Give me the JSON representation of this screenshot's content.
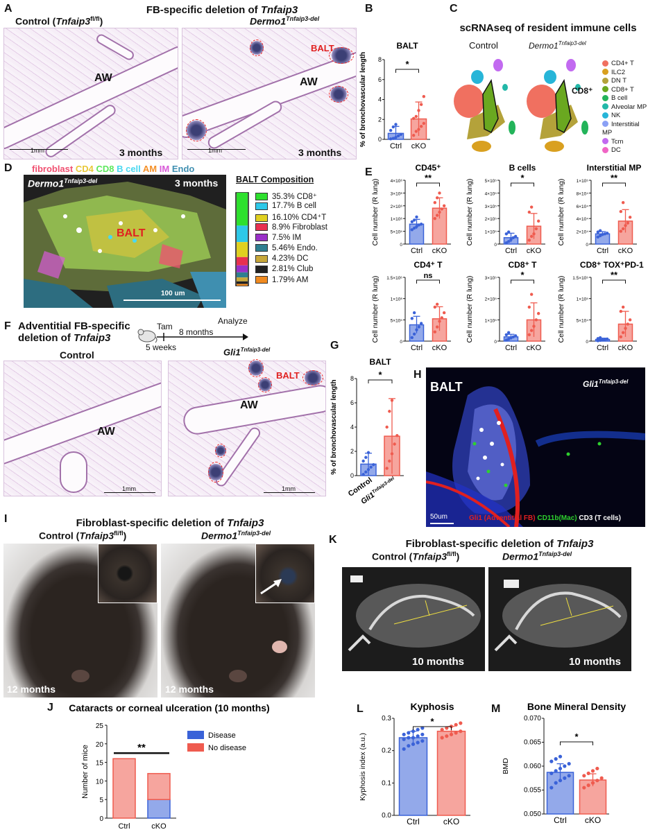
{
  "panels": {
    "A": "A",
    "B": "B",
    "C": "C",
    "D": "D",
    "E": "E",
    "F": "F",
    "G": "G",
    "H": "H",
    "I": "I",
    "J": "J",
    "K": "K",
    "L": "L",
    "M": "M"
  },
  "panelA": {
    "title_prefix": "FB-specific deletion of ",
    "title_gene": "Tnfaip3",
    "control_prefix": "Control (",
    "control_gene": "Tnfaip3",
    "control_sup": "fl/fl",
    "control_suffix": ")",
    "dermo_base": "Dermo1",
    "dermo_sup": "Tnfaip3-del",
    "aw": "AW",
    "balt": "BALT",
    "time": "3 months",
    "scale": "1mm"
  },
  "panelB": {
    "title": "BALT",
    "ylabel": "% of bronchovascular length",
    "sig": "*"
  },
  "panelC": {
    "title": "scRNAseq of resident immune cells",
    "control": "Control",
    "dermo_base": "Dermo1",
    "dermo_sup": "Tnfaip3-del",
    "cd8": "CD8⁺",
    "legend": [
      {
        "label": "CD4+ T",
        "color": "#f07060"
      },
      {
        "label": "ILC2",
        "color": "#d9a020"
      },
      {
        "label": "DN T",
        "color": "#b4a23a"
      },
      {
        "label": "CD8+ T",
        "color": "#6aa820"
      },
      {
        "label": "B cell",
        "color": "#23b45a"
      },
      {
        "label": "Alveolar MP",
        "color": "#22b8a8"
      },
      {
        "label": "NK",
        "color": "#27b5d8"
      },
      {
        "label": "Interstitial MP",
        "color": "#8aa0f5"
      },
      {
        "label": "Tcm",
        "color": "#c26af0"
      },
      {
        "label": "DC",
        "color": "#f065c5"
      }
    ]
  },
  "panelD": {
    "header": [
      {
        "text": "fibroblast",
        "color": "#f05070"
      },
      {
        "text": "CD4",
        "color": "#e8c838"
      },
      {
        "text": "CD8",
        "color": "#5ee85e"
      },
      {
        "text": "B cell",
        "color": "#4ad8f0"
      },
      {
        "text": "AM",
        "color": "#f49028"
      },
      {
        "text": "IM",
        "color": "#d85ad8"
      },
      {
        "text": "Endo",
        "color": "#3f8fb0"
      }
    ],
    "dermo_base": "Dermo1",
    "dermo_sup": "Tnfaip3-del",
    "time": "3 months",
    "balt": "BALT",
    "scale": "100 um",
    "comp_title": "BALT Composition",
    "composition": [
      {
        "label": "35.3% CD8⁺",
        "value": 35.3,
        "color": "#2ee02e"
      },
      {
        "label": "17.7% B cell",
        "value": 17.7,
        "color": "#2ec8e8"
      },
      {
        "label": "16.10% CD4⁺T",
        "value": 16.1,
        "color": "#e0d020"
      },
      {
        "label": "8.9% Fibroblast",
        "value": 8.9,
        "color": "#e83050"
      },
      {
        "label": "7.5% IM",
        "value": 7.5,
        "color": "#9a30c8"
      },
      {
        "label": "5.46% Endo.",
        "value": 5.46,
        "color": "#2f7f90"
      },
      {
        "label": "4.23% DC",
        "value": 4.23,
        "color": "#c8a83a"
      },
      {
        "label": "2.81% Club",
        "value": 2.81,
        "color": "#222222"
      },
      {
        "label": "1.79% AM",
        "value": 1.79,
        "color": "#f08a20"
      }
    ]
  },
  "panelE": {
    "ylabel": "Cell number (R lung)",
    "plots": [
      {
        "title": "CD45⁺",
        "sig": "**",
        "ticks": [
          "0",
          "5×10⁵",
          "1×10⁶",
          "2×10⁶",
          "3×10⁶",
          "4×10⁶"
        ]
      },
      {
        "title": "B cells",
        "sig": "*",
        "ticks": [
          "0",
          "1×10⁵",
          "2×10⁵",
          "3×10⁵",
          "4×10⁵",
          "5×10⁵"
        ]
      },
      {
        "title": "Interstitial MP",
        "sig": "**",
        "ticks": [
          "0",
          "2×10⁴",
          "4×10⁴",
          "6×10⁴",
          "8×10⁴",
          "1×10⁵"
        ]
      },
      {
        "title": "CD4⁺ T",
        "sig": "ns",
        "ticks": [
          "0",
          "5×10⁵",
          "1×10⁶",
          "1.5×10⁶"
        ]
      },
      {
        "title": "CD8⁺ T",
        "sig": "*",
        "ticks": [
          "0",
          "1×10⁵",
          "2×10⁵",
          "3×10⁵"
        ]
      },
      {
        "title": "CD8⁺ TOX⁺PD-1⁺",
        "sig": "**",
        "ticks": [
          "0",
          "5×10⁴",
          "1×10⁵",
          "1.5×10⁵"
        ]
      }
    ]
  },
  "panelF": {
    "title_line1": "Adventitial FB-specific",
    "title_line2_prefix": "deletion of ",
    "title_gene": "Tnfaip3",
    "tam": "Tam",
    "months": "8 months",
    "analyze": "Analyze",
    "weeks": "5 weeks",
    "control": "Control",
    "gli_base": "Gli1",
    "gli_sup": "Tnfaip3-del",
    "aw": "AW",
    "balt": "BALT",
    "scale": "1mm"
  },
  "panelG": {
    "title": "BALT",
    "ylabel": "% of bronchovascular length",
    "sig": "*",
    "x_control": "Control",
    "x_gli_base": "Gli1",
    "x_gli_sup": "Tnfaip3-del"
  },
  "panelH": {
    "balt": "BALT",
    "gli_base": "Gli1",
    "gli_sup": "Tnfaip3-del",
    "scale": "50um",
    "leg1": "Gli1 (Adventitial FB)",
    "leg2": "CD11b(Mac)",
    "leg3": "CD3 (T cells)"
  },
  "panelI": {
    "title_prefix": "Fibroblast-specific deletion of ",
    "title_gene": "Tnfaip3",
    "control_prefix": "Control (",
    "control_gene": "Tnfaip3",
    "control_sup": "fl/fl",
    "control_suffix": ")",
    "dermo_base": "Dermo1",
    "dermo_sup": "Tnfaip3-del",
    "age": "12 months"
  },
  "panelK": {
    "title_prefix": "Fibroblast-specific deletion of ",
    "title_gene": "Tnfaip3",
    "control_prefix": "Control (",
    "control_gene": "Tnfaip3",
    "control_sup": "fl/fl",
    "control_suffix": ")",
    "dermo_base": "Dermo1",
    "dermo_sup": "Tnfaip3-del",
    "age": "10 months"
  },
  "chart_data": [
    {
      "id": "B",
      "type": "bar",
      "title": "BALT",
      "ylabel": "% of bronchovascular length",
      "categories": [
        "Ctrl",
        "cKO"
      ],
      "values": [
        0.6,
        2.05
      ],
      "errors": [
        0.7,
        1.7
      ],
      "ylim": [
        0,
        8
      ],
      "yticks": [
        0,
        2,
        4,
        6,
        8
      ],
      "points": [
        [
          0.05,
          0.1,
          0.2,
          0.35,
          0.5,
          0.9,
          1.25,
          1.5
        ],
        [
          0.4,
          0.8,
          1.0,
          1.3,
          1.6,
          2.1,
          2.3,
          2.9,
          3.5,
          4.3
        ]
      ],
      "colors": [
        "#3a62d8",
        "#ef5b4f"
      ]
    },
    {
      "id": "E1",
      "type": "bar",
      "title": "CD45⁺",
      "categories": [
        "Ctrl",
        "cKO"
      ],
      "values": [
        1.25,
        2.25
      ],
      "errors": [
        0.3,
        0.65
      ],
      "ylim": [
        0,
        4
      ],
      "points": [
        [
          0.9,
          1.0,
          1.1,
          1.2,
          1.25,
          1.4,
          1.5,
          1.7
        ],
        [
          1.6,
          1.8,
          2.0,
          2.2,
          2.4,
          2.6,
          2.9,
          3.2
        ]
      ],
      "colors": [
        "#3a62d8",
        "#ef5b4f"
      ]
    },
    {
      "id": "E2",
      "type": "bar",
      "title": "B cells",
      "categories": [
        "Ctrl",
        "cKO"
      ],
      "values": [
        0.5,
        1.4
      ],
      "errors": [
        0.35,
        1.0
      ],
      "ylim": [
        0,
        5
      ],
      "points": [
        [
          0.1,
          0.2,
          0.35,
          0.5,
          0.6,
          0.8,
          0.95
        ],
        [
          0.3,
          0.6,
          0.8,
          1.2,
          1.8,
          2.5,
          2.9
        ]
      ],
      "colors": [
        "#3a62d8",
        "#ef5b4f"
      ]
    },
    {
      "id": "E3",
      "type": "bar",
      "title": "Interstitial MP",
      "categories": [
        "Ctrl",
        "cKO"
      ],
      "values": [
        1.6,
        3.6
      ],
      "errors": [
        0.35,
        1.8
      ],
      "ylim": [
        0,
        10
      ],
      "points": [
        [
          1.1,
          1.3,
          1.5,
          1.6,
          1.7,
          1.9,
          2.1
        ],
        [
          2.0,
          2.4,
          2.9,
          3.3,
          4.2,
          5.1,
          6.5
        ]
      ],
      "colors": [
        "#3a62d8",
        "#ef5b4f"
      ]
    },
    {
      "id": "E4",
      "type": "bar",
      "title": "CD4⁺ T",
      "categories": [
        "Ctrl",
        "cKO"
      ],
      "values": [
        2.3,
        3.15
      ],
      "errors": [
        1.2,
        1.7
      ],
      "ylim": [
        0,
        9
      ],
      "points": [
        [
          0.5,
          1.0,
          1.6,
          2.0,
          2.5,
          3.2,
          4.0
        ],
        [
          1.3,
          2.0,
          2.8,
          3.3,
          4.0,
          4.8,
          5.2
        ]
      ],
      "colors": [
        "#3a62d8",
        "#ef5b4f"
      ]
    },
    {
      "id": "E5",
      "type": "bar",
      "title": "CD8⁺ T",
      "categories": [
        "Ctrl",
        "cKO"
      ],
      "values": [
        0.2,
        1.0
      ],
      "errors": [
        0.12,
        0.8
      ],
      "ylim": [
        0,
        3
      ],
      "points": [
        [
          0.05,
          0.1,
          0.15,
          0.2,
          0.25,
          0.3,
          0.4
        ],
        [
          0.3,
          0.5,
          0.7,
          1.0,
          1.3,
          1.6,
          2.2
        ]
      ],
      "colors": [
        "#3a62d8",
        "#ef5b4f"
      ]
    },
    {
      "id": "E6",
      "type": "bar",
      "title": "CD8⁺ TOX⁺PD-1⁺",
      "categories": [
        "Ctrl",
        "cKO"
      ],
      "values": [
        0.04,
        0.4
      ],
      "errors": [
        0.03,
        0.3
      ],
      "ylim": [
        0,
        1.5
      ],
      "points": [
        [
          0.01,
          0.02,
          0.03,
          0.04,
          0.05,
          0.06,
          0.08
        ],
        [
          0.1,
          0.2,
          0.3,
          0.4,
          0.5,
          0.7,
          0.8
        ]
      ],
      "colors": [
        "#3a62d8",
        "#ef5b4f"
      ]
    },
    {
      "id": "G",
      "type": "bar",
      "title": "BALT",
      "ylabel": "% of bronchovascular length",
      "categories": [
        "Control",
        "Gli1 Tnfaip3-del"
      ],
      "values": [
        0.95,
        3.25
      ],
      "errors": [
        0.9,
        3.1
      ],
      "ylim": [
        0,
        8
      ],
      "yticks": [
        0,
        2,
        4,
        6,
        8
      ],
      "points": [
        [
          0.1,
          0.3,
          0.5,
          0.7,
          0.9,
          1.2,
          1.5,
          1.9
        ],
        [
          0.6,
          1.2,
          1.8,
          2.6,
          3.3,
          4.0,
          5.3,
          6.2
        ]
      ],
      "colors": [
        "#3a62d8",
        "#ef5b4f"
      ]
    },
    {
      "id": "J",
      "type": "bar",
      "stacked": true,
      "title": "Cataracts or corneal ulceration (10 months)",
      "ylabel": "Number of mice",
      "categories": [
        "Ctrl",
        "cKO"
      ],
      "ylim": [
        0,
        25
      ],
      "yticks": [
        0,
        5,
        10,
        15,
        20,
        25
      ],
      "series": [
        {
          "name": "Disease",
          "values": [
            0,
            5
          ],
          "color": "#3a62d8"
        },
        {
          "name": "No disease",
          "values": [
            16,
            7
          ],
          "color": "#ef5b4f"
        }
      ],
      "sig": "**"
    },
    {
      "id": "L",
      "type": "bar",
      "title": "Kyphosis",
      "ylabel": "Kyphosis index (a.u.)",
      "categories": [
        "Ctrl",
        "cKO"
      ],
      "values": [
        0.24,
        0.26
      ],
      "errors": [
        0.02,
        0.015
      ],
      "ylim": [
        0,
        0.3
      ],
      "yticks": [
        0.0,
        0.1,
        0.2,
        0.3
      ],
      "points": [
        [
          0.205,
          0.215,
          0.22,
          0.225,
          0.23,
          0.235,
          0.24,
          0.24,
          0.245,
          0.25,
          0.25,
          0.255,
          0.26,
          0.265,
          0.27
        ],
        [
          0.24,
          0.245,
          0.25,
          0.255,
          0.26,
          0.265,
          0.27,
          0.275,
          0.28,
          0.285
        ]
      ],
      "colors": [
        "#3a62d8",
        "#ef5b4f"
      ],
      "sig": "*"
    },
    {
      "id": "M",
      "type": "bar",
      "title": "Bone Mineral Density",
      "ylabel": "BMD",
      "categories": [
        "Ctrl",
        "cKO"
      ],
      "values": [
        0.0587,
        0.0571
      ],
      "errors": [
        0.0018,
        0.0013
      ],
      "ylim": [
        0.05,
        0.07
      ],
      "yticks": [
        0.05,
        0.055,
        0.06,
        0.065,
        0.07
      ],
      "points": [
        [
          0.0555,
          0.0565,
          0.057,
          0.0575,
          0.058,
          0.0585,
          0.059,
          0.0595,
          0.06,
          0.0605,
          0.061,
          0.0615,
          0.062
        ],
        [
          0.0555,
          0.056,
          0.0565,
          0.057,
          0.0575,
          0.058,
          0.0585,
          0.059,
          0.0595
        ]
      ],
      "colors": [
        "#3a62d8",
        "#ef5b4f"
      ],
      "sig": "*"
    }
  ]
}
